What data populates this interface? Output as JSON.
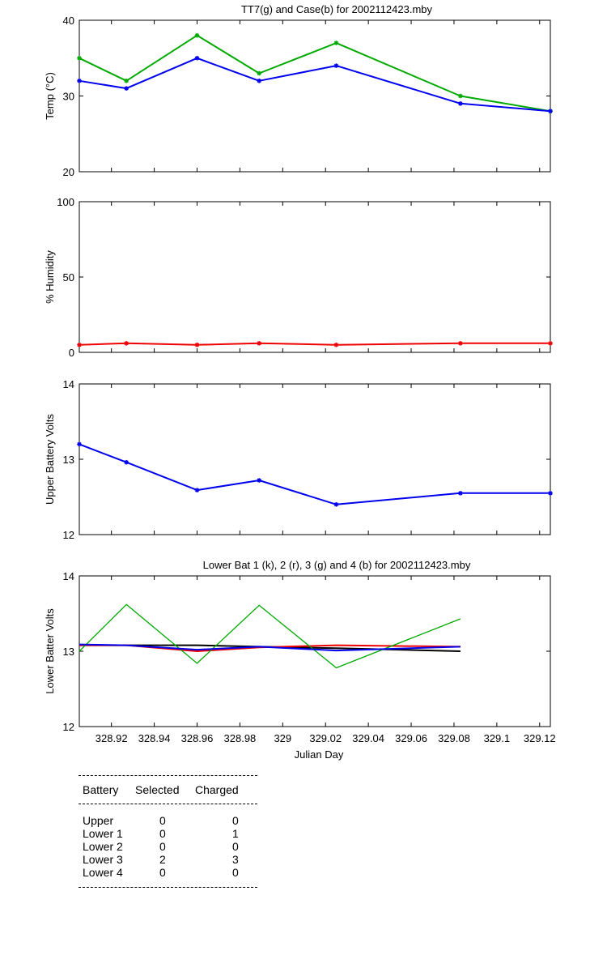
{
  "chart_data": [
    {
      "type": "line",
      "title": "TT7(g) and Case(b) for 2002112423.mby",
      "ylabel": "Temp (°C)",
      "xlabel": "",
      "xlim": [
        328.905,
        329.125
      ],
      "ylim": [
        20,
        40
      ],
      "xticks": [
        328.92,
        328.94,
        328.96,
        328.98,
        329,
        329.02,
        329.04,
        329.06,
        329.08,
        329.1,
        329.12
      ],
      "yticks": [
        20,
        30,
        40
      ],
      "yticklabels": [
        "20",
        "30",
        "40"
      ],
      "grid": false,
      "series": [
        {
          "color": "#00aa00",
          "x": [
            328.905,
            328.927,
            328.96,
            328.989,
            329.025,
            329.083,
            329.125
          ],
          "values": [
            35,
            32,
            38,
            33,
            37,
            30,
            28
          ]
        },
        {
          "color": "#0000ee",
          "x": [
            328.905,
            328.927,
            328.96,
            328.989,
            329.025,
            329.083,
            329.125
          ],
          "values": [
            32,
            31,
            35,
            32,
            34,
            29,
            28
          ]
        }
      ]
    },
    {
      "type": "line",
      "title": "",
      "ylabel": "% Humidity",
      "xlabel": "",
      "xlim": [
        328.905,
        329.125
      ],
      "ylim": [
        0,
        100
      ],
      "xticks": [
        328.92,
        328.94,
        328.96,
        328.98,
        329,
        329.02,
        329.04,
        329.06,
        329.08,
        329.1,
        329.12
      ],
      "yticks": [
        0,
        50,
        100
      ],
      "yticklabels": [
        "0",
        "50",
        "100"
      ],
      "grid": false,
      "series": [
        {
          "color": "#ee0000",
          "x": [
            328.905,
            328.927,
            328.96,
            328.989,
            329.025,
            329.083,
            329.125
          ],
          "values": [
            5,
            6,
            5,
            6,
            5,
            6,
            6
          ]
        }
      ]
    },
    {
      "type": "line",
      "title": "",
      "ylabel": "Upper Battery Volts",
      "xlabel": "",
      "xlim": [
        328.905,
        329.125
      ],
      "ylim": [
        12,
        14
      ],
      "xticks": [
        328.92,
        328.94,
        328.96,
        328.98,
        329,
        329.02,
        329.04,
        329.06,
        329.08,
        329.1,
        329.12
      ],
      "yticks": [
        12,
        13,
        14
      ],
      "yticklabels": [
        "12",
        "13",
        "14"
      ],
      "grid": false,
      "series": [
        {
          "color": "#0000ee",
          "x": [
            328.905,
            328.927,
            328.96,
            328.989,
            329.025,
            329.083,
            329.125
          ],
          "values": [
            13.2,
            12.96,
            12.59,
            12.72,
            12.4,
            12.55,
            12.55
          ]
        }
      ]
    },
    {
      "type": "line",
      "title": "Lower Bat 1 (k), 2 (r), 3 (g) and 4 (b) for 2002112423.mby",
      "ylabel": "Lower Batter Volts",
      "xlabel": "Julian Day",
      "xlim": [
        328.905,
        329.125
      ],
      "ylim": [
        12,
        14
      ],
      "xticks": [
        328.92,
        328.94,
        328.96,
        328.98,
        329,
        329.02,
        329.04,
        329.06,
        329.08,
        329.1,
        329.12
      ],
      "xticklabels": [
        "328.92",
        "328.94",
        "328.96",
        "328.98",
        "329",
        "329.02",
        "329.04",
        "329.06",
        "329.08",
        "329.1",
        "329.12"
      ],
      "yticks": [
        12,
        13,
        14
      ],
      "yticklabels": [
        "12",
        "13",
        "14"
      ],
      "grid": false,
      "series": [
        {
          "color": "#000000",
          "x": [
            328.905,
            328.927,
            328.96,
            328.989,
            329.025,
            329.083
          ],
          "values": [
            13.08,
            13.08,
            13.08,
            13.06,
            13.04,
            13.0
          ]
        },
        {
          "color": "#ee0000",
          "x": [
            328.905,
            328.927,
            328.96,
            328.989,
            329.025,
            329.083
          ],
          "values": [
            13.08,
            13.08,
            13.0,
            13.05,
            13.08,
            13.06
          ]
        },
        {
          "color": "#00aa00",
          "x": [
            328.905,
            328.927,
            328.96,
            328.989,
            329.025,
            329.083
          ],
          "values": [
            13.0,
            13.62,
            12.84,
            13.61,
            12.78,
            13.43
          ]
        },
        {
          "color": "#0000ee",
          "x": [
            328.905,
            328.927,
            328.96,
            328.989,
            329.025,
            329.083
          ],
          "values": [
            13.09,
            13.08,
            13.02,
            13.06,
            13.01,
            13.06
          ]
        }
      ]
    }
  ],
  "table": {
    "headers": [
      "Battery",
      "Selected",
      "Charged"
    ],
    "rows": [
      {
        "battery": "Upper",
        "selected": "0",
        "charged": "0"
      },
      {
        "battery": "Lower 1",
        "selected": "0",
        "charged": "1"
      },
      {
        "battery": "Lower 2",
        "selected": "0",
        "charged": "0"
      },
      {
        "battery": "Lower 3",
        "selected": "2",
        "charged": "3"
      },
      {
        "battery": "Lower 4",
        "selected": "0",
        "charged": "0"
      }
    ]
  }
}
